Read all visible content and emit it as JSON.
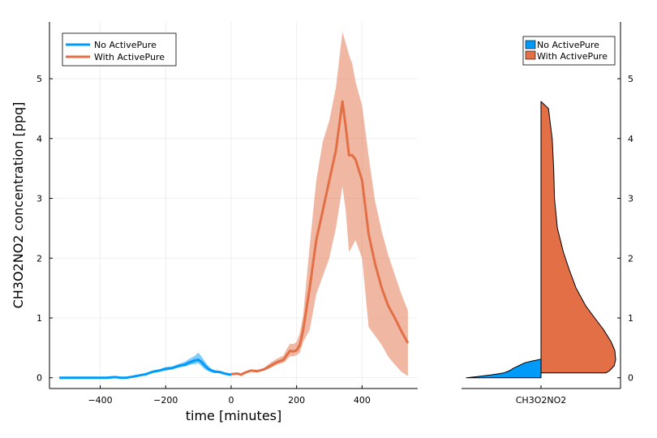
{
  "colors": {
    "no_activepure": "#009af9",
    "with_activepure": "#e26f46"
  },
  "chart_data": [
    {
      "type": "line",
      "xlabel": "time [minutes]",
      "ylabel": "CH3O2NO2 concentration [ppq]",
      "xlim": [
        -555,
        570
      ],
      "ylim": [
        -0.18,
        5.95
      ],
      "xticks": [
        -400,
        -200,
        0,
        200,
        400
      ],
      "xtick_labels": [
        "−400",
        "−200",
        "0",
        "200",
        "400"
      ],
      "yticks": [
        0,
        1,
        2,
        3,
        4,
        5
      ],
      "ytick_labels": [
        "0",
        "1",
        "2",
        "3",
        "4",
        "5"
      ],
      "grid": true,
      "legend_position": "top-left",
      "series": [
        {
          "name": "No ActivePure",
          "color": "#009af9",
          "x": [
            -525,
            -500,
            -450,
            -400,
            -380,
            -360,
            -350,
            -340,
            -320,
            -300,
            -280,
            -260,
            -240,
            -220,
            -200,
            -180,
            -160,
            -150,
            -140,
            -130,
            -120,
            -110,
            -100,
            -90,
            -80,
            -70,
            -60,
            -50,
            -40,
            -30,
            -20,
            -10,
            0
          ],
          "y": [
            0.0,
            0.0,
            0.0,
            0.0,
            0.0,
            0.01,
            0.01,
            0.0,
            0.0,
            0.02,
            0.04,
            0.06,
            0.1,
            0.12,
            0.15,
            0.16,
            0.2,
            0.21,
            0.22,
            0.25,
            0.27,
            0.29,
            0.3,
            0.26,
            0.2,
            0.15,
            0.12,
            0.1,
            0.1,
            0.09,
            0.07,
            0.06,
            0.05
          ],
          "lower": [
            0.0,
            0.0,
            0.0,
            0.0,
            0.0,
            0.0,
            0.0,
            0.0,
            0.0,
            0.01,
            0.03,
            0.05,
            0.08,
            0.1,
            0.12,
            0.14,
            0.17,
            0.18,
            0.19,
            0.21,
            0.22,
            0.23,
            0.24,
            0.19,
            0.14,
            0.11,
            0.09,
            0.08,
            0.08,
            0.07,
            0.05,
            0.04,
            0.04
          ],
          "upper": [
            0.01,
            0.01,
            0.01,
            0.01,
            0.01,
            0.02,
            0.02,
            0.01,
            0.01,
            0.03,
            0.05,
            0.08,
            0.12,
            0.14,
            0.18,
            0.19,
            0.23,
            0.25,
            0.27,
            0.31,
            0.34,
            0.37,
            0.42,
            0.35,
            0.27,
            0.2,
            0.15,
            0.13,
            0.12,
            0.11,
            0.09,
            0.08,
            0.06
          ]
        },
        {
          "name": "With ActivePure",
          "color": "#e26f46",
          "x": [
            0,
            20,
            30,
            40,
            60,
            80,
            100,
            120,
            140,
            160,
            170,
            180,
            190,
            200,
            210,
            220,
            240,
            260,
            280,
            300,
            320,
            340,
            350,
            360,
            370,
            380,
            400,
            420,
            440,
            460,
            480,
            500,
            520,
            540
          ],
          "y": [
            0.06,
            0.07,
            0.05,
            0.08,
            0.12,
            0.11,
            0.14,
            0.2,
            0.26,
            0.3,
            0.38,
            0.45,
            0.44,
            0.46,
            0.55,
            0.8,
            1.5,
            2.3,
            2.8,
            3.3,
            3.8,
            4.62,
            4.2,
            3.72,
            3.72,
            3.65,
            3.3,
            2.4,
            1.9,
            1.5,
            1.2,
            1.0,
            0.78,
            0.58
          ],
          "lower": [
            0.05,
            0.06,
            0.04,
            0.06,
            0.1,
            0.09,
            0.12,
            0.16,
            0.22,
            0.25,
            0.3,
            0.36,
            0.36,
            0.38,
            0.42,
            0.6,
            0.8,
            1.4,
            1.7,
            2.0,
            2.5,
            3.2,
            2.8,
            2.1,
            2.2,
            2.3,
            2.0,
            0.85,
            0.7,
            0.55,
            0.35,
            0.22,
            0.1,
            0.03
          ],
          "upper": [
            0.07,
            0.08,
            0.07,
            0.1,
            0.14,
            0.13,
            0.16,
            0.25,
            0.32,
            0.37,
            0.48,
            0.57,
            0.56,
            0.6,
            0.75,
            1.05,
            2.2,
            3.3,
            3.95,
            4.3,
            4.85,
            5.78,
            5.6,
            5.4,
            5.25,
            4.95,
            4.55,
            3.7,
            2.95,
            2.45,
            2.05,
            1.72,
            1.4,
            1.12
          ]
        }
      ]
    },
    {
      "type": "area",
      "xtick_labels": [
        "CH3O2NO2"
      ],
      "ylim": [
        -0.18,
        5.95
      ],
      "yticks": [
        0,
        1,
        2,
        3,
        4,
        5
      ],
      "ytick_labels": [
        "0",
        "1",
        "2",
        "3",
        "4",
        "5"
      ],
      "grid": false,
      "legend_position": "top-right",
      "series": [
        {
          "name": "No ActivePure",
          "color": "#009af9",
          "side": "left",
          "y": [
            0.0,
            0.02,
            0.05,
            0.08,
            0.12,
            0.16,
            0.2,
            0.25,
            0.28,
            0.3,
            0.31
          ],
          "density": [
            1.0,
            0.85,
            0.65,
            0.5,
            0.42,
            0.37,
            0.3,
            0.22,
            0.12,
            0.04,
            0.0
          ]
        },
        {
          "name": "With ActivePure",
          "color": "#e26f46",
          "side": "right",
          "y": [
            0.08,
            0.12,
            0.2,
            0.3,
            0.45,
            0.6,
            0.8,
            1.0,
            1.2,
            1.5,
            1.8,
            2.1,
            2.5,
            3.0,
            3.5,
            4.0,
            4.3,
            4.5,
            4.62
          ],
          "density": [
            0.87,
            0.92,
            0.98,
            1.0,
            0.99,
            0.94,
            0.84,
            0.72,
            0.6,
            0.47,
            0.38,
            0.3,
            0.22,
            0.18,
            0.17,
            0.15,
            0.12,
            0.1,
            0.0
          ]
        }
      ]
    }
  ]
}
